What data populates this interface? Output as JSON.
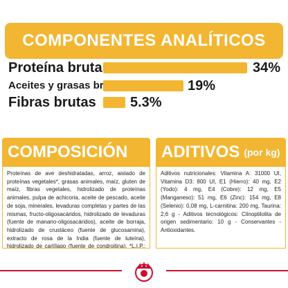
{
  "banner": {
    "title": "COMPONENTES ANALÍTICOS"
  },
  "analytics": [
    {
      "label": "Proteína bruta",
      "value": "34%",
      "percent": 34
    },
    {
      "label": "Aceites y grasas brutos",
      "value": "19%",
      "percent": 19
    },
    {
      "label": "Fibras brutas",
      "value": "5.3%",
      "percent": 5.3
    }
  ],
  "composicion": {
    "title": "COMPOSICIÓN",
    "text": "Proteínas de ave deshidratadas, arroz, aislado de proteínas vegetales*, grasas animales, maíz, gluten de maíz, fibras vegetales, hidrolizado de proteínas animales, pulpa de achicoria, aceite de pescado, aceite de soja, minerales, levaduras completas y partes de las mismas, fructo-oligosacáridos, hidrolizado de levaduras (fuente de manano-oligosacáridos), aceite de borraja, hidrolizado de crustáceo (fuente de glucosamina), extracto de rosa de la India (fuente de luteína), hidrolizado de cartílago (fuente de condroitina). *L.I.P.: proteína seleccionada por su elevada digestibilidad."
  },
  "aditivos": {
    "title": "ADITIVOS",
    "subtitle": "(por kg)",
    "text": "Aditivos nutricionales: Vitamina A: 31000 UI, Vitamina D3: 800 UI, E1 (Hierro): 40 mg, E2 (Yodo): 4 mg, E4 (Cobre): 12 mg, E5 (Manganeso): 51 mg, E6 (Zinc): 154 mg, E8 (Selenio): 0,08 mg, L-carnitina: 200 mg, Taurina: 2,6 g - Aditivos tecnológicos: Clinoptilolita de origen sedimentario: 10 g - Conservantes - Antioxidantes."
  },
  "colors": {
    "accent": "#f2b632",
    "brand_red": "#c8102e",
    "text": "#1a1a1a"
  },
  "icons": {
    "logo": "royal-canin-crown-logo-icon"
  }
}
